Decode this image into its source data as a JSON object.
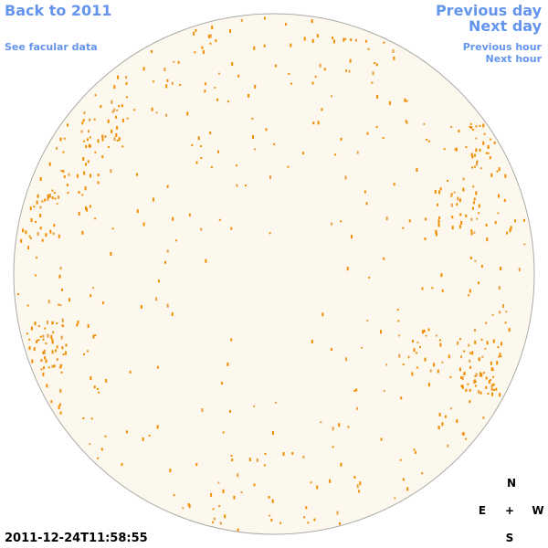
{
  "navigation": {
    "back": "Back to 2011",
    "facular": "See facular data",
    "previous_day": "Previous day",
    "next_day": "Next day",
    "previous_hour": "Previous hour",
    "next_hour": "Next hour"
  },
  "timestamp": "2011-12-24T11:58:55",
  "compass": {
    "north": "N",
    "east": "E",
    "center": "+",
    "west": "W",
    "south": "S"
  }
}
